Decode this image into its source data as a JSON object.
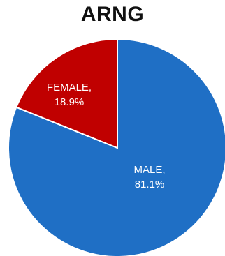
{
  "chart_data": {
    "type": "pie",
    "title": "ARNG",
    "start_angle_deg": 0,
    "direction": "clockwise",
    "slices": [
      {
        "label": "MALE,",
        "value_text": "81.1%",
        "value": 81.1,
        "color": "#1f6fc5"
      },
      {
        "label": "FEMALE,",
        "value_text": "18.9%",
        "value": 18.9,
        "color": "#c00000"
      }
    ]
  }
}
